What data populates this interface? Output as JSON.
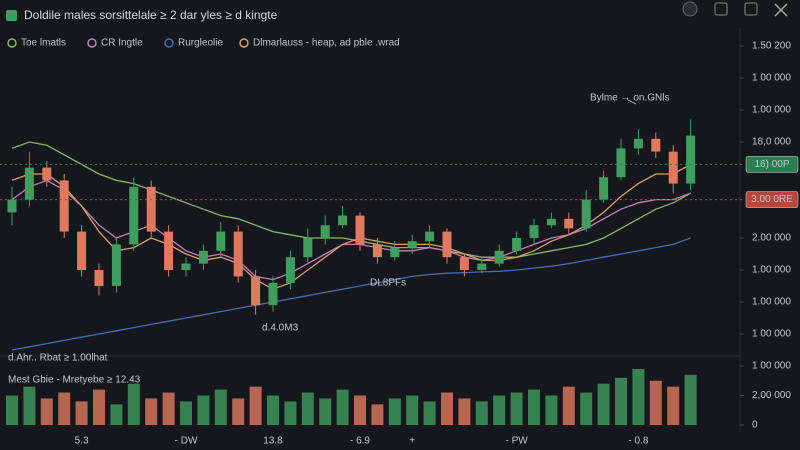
{
  "chart_data": {
    "type": "candlestick",
    "title": "Doldile males sorsittelale ≥ 2 dar yles ≥ d kingte",
    "categories": [
      null,
      null,
      null,
      null,
      "5.3",
      null,
      null,
      null,
      null,
      null,
      "- DW",
      null,
      null,
      null,
      null,
      "13.8",
      null,
      null,
      null,
      null,
      "- 6.9",
      null,
      null,
      "+",
      null,
      null,
      null,
      null,
      null,
      "- PW",
      null,
      null,
      null,
      null,
      null,
      null,
      "- 0.8",
      null,
      null,
      null
    ],
    "open": [
      119,
      121,
      126,
      124,
      116,
      110,
      107.5,
      114,
      123,
      116,
      110,
      111,
      113,
      116,
      109,
      104.5,
      108,
      112,
      115,
      117,
      118.5,
      114,
      112,
      113.5,
      114.5,
      116,
      112,
      110,
      111,
      113,
      115,
      117,
      118,
      116.5,
      121,
      124.5,
      129,
      130.5,
      128.5,
      123.5
    ],
    "high": [
      123,
      128.5,
      127,
      125,
      117,
      111,
      115,
      124.5,
      124,
      117,
      112,
      114,
      117.5,
      117,
      110,
      109,
      113,
      116.5,
      118.5,
      120,
      119,
      115,
      114.5,
      115.5,
      117,
      116.5,
      112.5,
      112,
      114,
      116,
      118,
      119,
      119,
      122.5,
      125.5,
      130.5,
      132,
      131.5,
      129.5,
      133.5
    ],
    "low": [
      117,
      120,
      123,
      115,
      109,
      106,
      106.5,
      113,
      115,
      109,
      109,
      110,
      112,
      108,
      103,
      103.5,
      107,
      111,
      114,
      116.5,
      113,
      111,
      111.5,
      112.5,
      113.5,
      111,
      109,
      109.5,
      110.5,
      112.5,
      114,
      116.5,
      115.5,
      116,
      120.5,
      124,
      128,
      127.5,
      122,
      122.5
    ],
    "close": [
      121,
      126,
      124,
      116,
      110,
      107.5,
      114,
      123,
      116,
      110,
      111,
      113,
      116,
      109,
      104.5,
      108,
      112,
      115,
      117,
      118.5,
      114,
      112,
      113.5,
      114.5,
      116,
      112,
      110,
      111,
      113,
      115,
      117,
      118,
      116.5,
      121,
      124.5,
      129,
      130.5,
      128.5,
      123.5,
      131
    ],
    "up_color": "#3f9e5e",
    "down_color": "#e07a5f",
    "series": [
      {
        "name": "Toe lmatls",
        "color": "#86b86a",
        "values": [
          129,
          130,
          129.5,
          128,
          126.5,
          125,
          124,
          123.5,
          122.5,
          121.5,
          120.5,
          119.5,
          118.5,
          118,
          117,
          116,
          115.5,
          115,
          115,
          115,
          114.5,
          114,
          113.5,
          113.5,
          113.5,
          113,
          112.5,
          112,
          112,
          112,
          112.5,
          113,
          113.5,
          114,
          115,
          116.5,
          118,
          119.5,
          120.5,
          122
        ]
      },
      {
        "name": "CR Ingtle",
        "color": "#c77dba",
        "values": [
          121,
          123,
          124,
          122.5,
          120,
          117,
          115,
          116,
          117,
          115,
          113,
          112,
          112.5,
          111.5,
          109,
          108.5,
          109.5,
          111,
          112.5,
          114,
          114,
          113.5,
          113,
          113,
          113.5,
          113,
          112,
          111.5,
          112,
          113,
          114,
          115,
          115.5,
          116.5,
          118,
          119.5,
          120.5,
          121,
          121,
          122
        ]
      },
      {
        "name": "Rurgleolie",
        "color": "#3f6fb5",
        "values": [
          97.5,
          98,
          98.5,
          99,
          99.5,
          100,
          100.5,
          101,
          101.5,
          102,
          102.5,
          103,
          103.5,
          104,
          104.5,
          105,
          105.5,
          106,
          106.5,
          107,
          107.5,
          108,
          108.5,
          109,
          109.3,
          109.5,
          109.6,
          109.7,
          109.8,
          110,
          110.3,
          110.6,
          111,
          111.5,
          112,
          112.5,
          113,
          113.5,
          114,
          115
        ]
      },
      {
        "name": "Dlmarlauss - heap, ad pble .wrad",
        "color": "#d9a066",
        "values": [
          124,
          125,
          125,
          123,
          120,
          116,
          113,
          113.5,
          115,
          114,
          112.5,
          111.5,
          112,
          111,
          108.5,
          107,
          108,
          110,
          112,
          114,
          115,
          114.5,
          114,
          114,
          114,
          113.5,
          112.5,
          111.5,
          111.5,
          112,
          113,
          114.5,
          115.5,
          117,
          119,
          121.5,
          123.5,
          125,
          125,
          126.5
        ]
      }
    ],
    "ylim": [
      97.5,
      147.5
    ],
    "yticks": [
      {
        "value": 145,
        "label": "1.50 200"
      },
      {
        "value": 140,
        "label": "1 00 000"
      },
      {
        "value": 135,
        "label": "1.00 000"
      },
      {
        "value": 130,
        "label": "18,0 000"
      },
      {
        "value": 115,
        "label": "2.00 000"
      },
      {
        "value": 110,
        "label": "1.00 000"
      },
      {
        "value": 105,
        "label": "1.00 000"
      },
      {
        "value": 100,
        "label": "1 00 000"
      }
    ],
    "price_tags": [
      {
        "label": "16) 00P",
        "value": 126.5,
        "color": "#2e7d4f"
      },
      {
        "label": "3.00 0RE",
        "value": 121,
        "color": "#b5483a"
      }
    ],
    "volume": [
      1.0,
      1.3,
      0.9,
      1.1,
      0.8,
      1.2,
      0.7,
      1.4,
      0.9,
      1.1,
      0.8,
      1.0,
      1.2,
      0.9,
      1.3,
      1.0,
      0.8,
      1.1,
      0.9,
      1.2,
      1.0,
      0.7,
      0.9,
      1.0,
      0.8,
      1.1,
      0.9,
      0.8,
      1.0,
      1.1,
      1.2,
      1.0,
      1.3,
      1.1,
      1.4,
      1.6,
      1.9,
      1.5,
      1.3,
      1.7
    ],
    "vlim": [
      0,
      2.3
    ],
    "vticks": [
      {
        "value": 2,
        "label": "1 00 000"
      },
      {
        "value": 1,
        "label": "2,00 000"
      },
      0
    ],
    "annotations": [
      "Bylme → on.GNls",
      "DL8PFs",
      "d.4.0M3",
      "d.Ahr.. Rbat ≥ 1.00lhat",
      "Mest Gbie - Mretyebe ≥ 12.43"
    ],
    "grid": false
  }
}
